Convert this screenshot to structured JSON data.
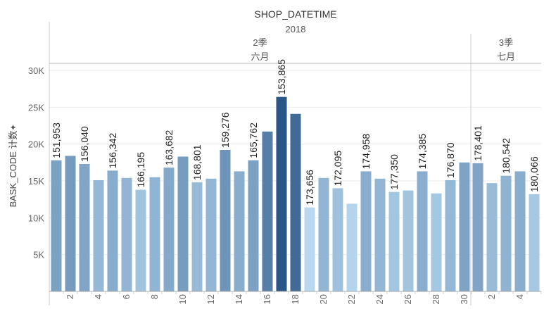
{
  "chart_data": {
    "type": "bar",
    "title": "SHOP_DATETIME",
    "year": "2018",
    "ylabel": "BASK_CODE 计数",
    "ylabel_icon": "pin-icon",
    "ylim": [
      0,
      30000
    ],
    "yticks": [
      {
        "value": 5000,
        "label": "5K"
      },
      {
        "value": 10000,
        "label": "10K"
      },
      {
        "value": 15000,
        "label": "15K"
      },
      {
        "value": 20000,
        "label": "20K"
      },
      {
        "value": 25000,
        "label": "25K"
      },
      {
        "value": 30000,
        "label": "30K"
      }
    ],
    "panels": [
      {
        "quarter": "2季",
        "month": "六月",
        "days": [
          1,
          2,
          3,
          4,
          5,
          6,
          7,
          8,
          9,
          10,
          11,
          12,
          13,
          14,
          15,
          16,
          17,
          18,
          19,
          20,
          21,
          22,
          23,
          24,
          25,
          26,
          27,
          28,
          29,
          30
        ],
        "day_tick_labels": [
          "",
          "2",
          "",
          "4",
          "",
          "6",
          "",
          "8",
          "",
          "10",
          "",
          "12",
          "",
          "14",
          "",
          "16",
          "",
          "18",
          "",
          "20",
          "",
          "22",
          "",
          "24",
          "",
          "26",
          "",
          "28",
          "",
          "30"
        ],
        "values": [
          17800,
          18400,
          17300,
          15100,
          16400,
          15400,
          13800,
          15500,
          16800,
          18300,
          14800,
          15300,
          19200,
          16300,
          17800,
          21700,
          26400,
          24100,
          11400,
          15400,
          14000,
          11900,
          16300,
          15300,
          13500,
          13700,
          16300,
          13300,
          15100,
          17500
        ],
        "data_labels": [
          "151,953",
          "",
          "156,040",
          "",
          "156,342",
          "",
          "166,195",
          "",
          "163,682",
          "",
          "168,801",
          "",
          "159,276",
          "",
          "165,762",
          "",
          "153,865",
          "",
          "173,656",
          "",
          "172,095",
          "",
          "174,958",
          "",
          "177,350",
          "",
          "174,385",
          "",
          "176,870",
          ""
        ]
      },
      {
        "quarter": "3季",
        "month": "七月",
        "days": [
          1,
          2,
          3,
          4,
          5
        ],
        "day_tick_labels": [
          "",
          "2",
          "",
          "4",
          ""
        ],
        "values": [
          17400,
          14700,
          15700,
          16300,
          13200
        ],
        "data_labels": [
          "178,401",
          "",
          "180,542",
          "",
          "180,066"
        ]
      }
    ],
    "color_scale": {
      "min_color": "#b7d8ef",
      "max_color": "#2a5687"
    },
    "grid": true,
    "legend": "none"
  }
}
